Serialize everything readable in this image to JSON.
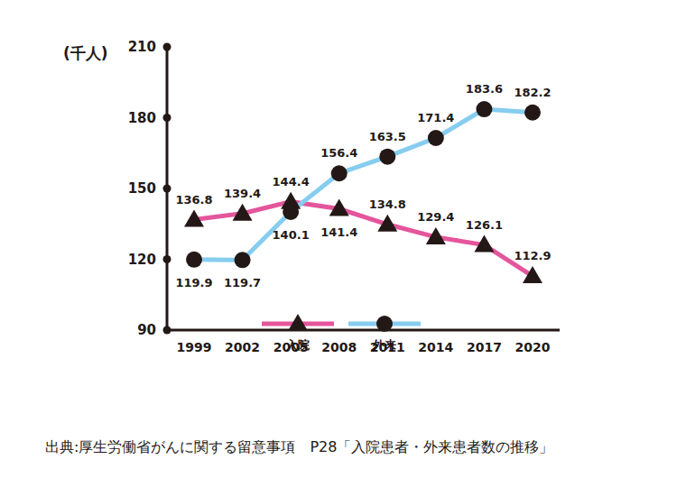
{
  "chart_data": {
    "type": "line",
    "ylabel": "(千人)",
    "categories": [
      "1999",
      "2002",
      "2005",
      "2008",
      "2011",
      "2014",
      "2017",
      "2020"
    ],
    "series": [
      {
        "name": "入院",
        "color": "#e4569c",
        "marker": "triangle",
        "values": [
          136.8,
          139.4,
          144.4,
          141.4,
          134.8,
          129.4,
          126.1,
          112.9
        ]
      },
      {
        "name": "外来",
        "color": "#86cdef",
        "marker": "circle",
        "values": [
          119.9,
          119.7,
          140.1,
          156.4,
          163.5,
          171.4,
          183.6,
          182.2
        ]
      }
    ],
    "ylim": [
      90,
      210
    ],
    "yticks": [
      90,
      120,
      150,
      180,
      210
    ],
    "grid": false,
    "data_labels": true,
    "legend": "center",
    "source": "出典:厚生労働省がんに関する留意事項　P28「入院患者・外来患者数の推移」"
  }
}
